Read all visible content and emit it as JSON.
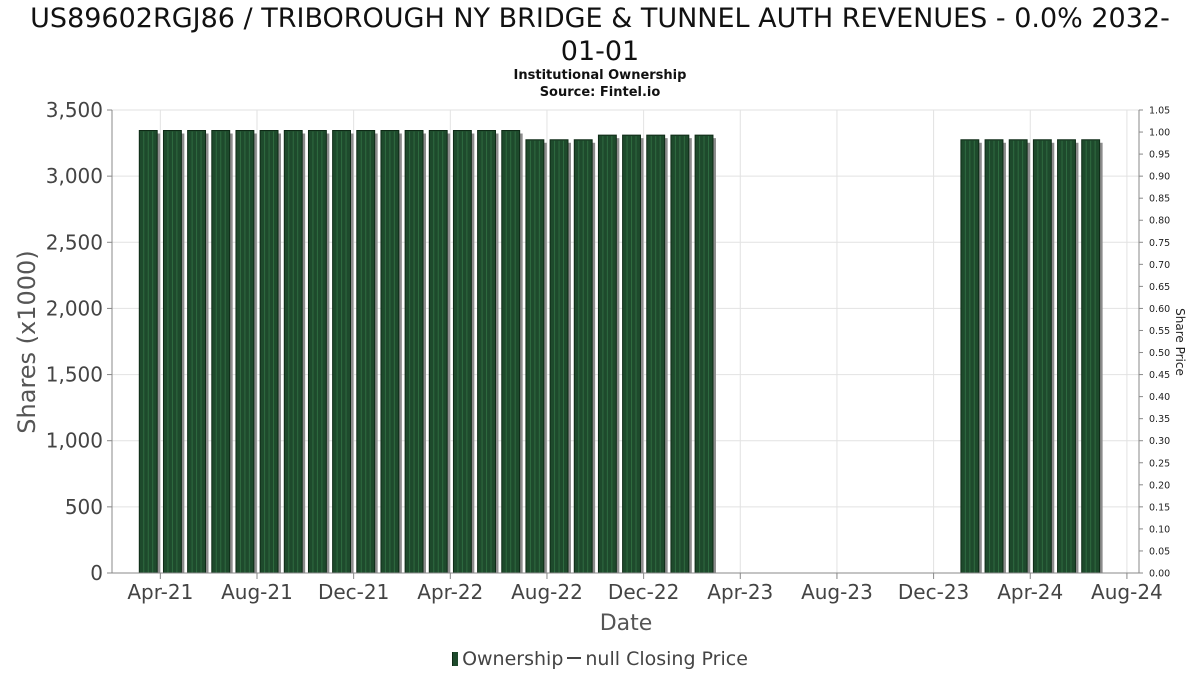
{
  "chart_data": {
    "type": "bar",
    "title_line1": "US89602RGJ86 / TRIBOROUGH NY BRIDGE & TUNNEL AUTH REVENUES - 0.0% 2032-",
    "title_line2": "01-01",
    "subtitle": "Institutional Ownership",
    "source": "Source: Fintel.io",
    "xlabel": "Date",
    "ylabel": "Shares (x1000)",
    "ylabel_right": "Share Price",
    "ylim": [
      0,
      3500
    ],
    "ylim_right": [
      0,
      1.05
    ],
    "yticks": [
      "0",
      "500",
      "1,000",
      "1,500",
      "2,000",
      "2,500",
      "3,000",
      "3,500"
    ],
    "yticks_right": [
      "0.00",
      "0.05",
      "0.10",
      "0.15",
      "0.20",
      "0.25",
      "0.30",
      "0.35",
      "0.40",
      "0.45",
      "0.50",
      "0.55",
      "0.60",
      "0.65",
      "0.70",
      "0.75",
      "0.80",
      "0.85",
      "0.90",
      "0.95",
      "1.00",
      "1.05"
    ],
    "xticks": [
      "Apr-21",
      "Aug-21",
      "Dec-21",
      "Apr-22",
      "Aug-22",
      "Dec-22",
      "Apr-23",
      "Aug-23",
      "Dec-23",
      "Apr-24",
      "Aug-24"
    ],
    "x_start": "2021-02",
    "grid": true,
    "legend_position": "bottom",
    "colors": {
      "bar": "#1e4a2c",
      "bar_edge": "#0e2a16",
      "shadow": "#8c8c8c"
    },
    "series": [
      {
        "name": "Ownership",
        "points": [
          {
            "month": "2021-03",
            "value": 3345
          },
          {
            "month": "2021-04",
            "value": 3345
          },
          {
            "month": "2021-05",
            "value": 3345
          },
          {
            "month": "2021-06",
            "value": 3345
          },
          {
            "month": "2021-07",
            "value": 3345
          },
          {
            "month": "2021-08",
            "value": 3345
          },
          {
            "month": "2021-09",
            "value": 3345
          },
          {
            "month": "2021-10",
            "value": 3345
          },
          {
            "month": "2021-11",
            "value": 3345
          },
          {
            "month": "2021-12",
            "value": 3345
          },
          {
            "month": "2022-01",
            "value": 3345
          },
          {
            "month": "2022-02",
            "value": 3345
          },
          {
            "month": "2022-03",
            "value": 3345
          },
          {
            "month": "2022-04",
            "value": 3345
          },
          {
            "month": "2022-05",
            "value": 3345
          },
          {
            "month": "2022-06",
            "value": 3345
          },
          {
            "month": "2022-07",
            "value": 3275
          },
          {
            "month": "2022-08",
            "value": 3275
          },
          {
            "month": "2022-09",
            "value": 3275
          },
          {
            "month": "2022-10",
            "value": 3310
          },
          {
            "month": "2022-11",
            "value": 3310
          },
          {
            "month": "2022-12",
            "value": 3310
          },
          {
            "month": "2023-01",
            "value": 3310
          },
          {
            "month": "2023-02",
            "value": 3310
          },
          {
            "month": "2024-01",
            "value": 3275
          },
          {
            "month": "2024-02",
            "value": 3275
          },
          {
            "month": "2024-03",
            "value": 3275
          },
          {
            "month": "2024-04",
            "value": 3275
          },
          {
            "month": "2024-05",
            "value": 3275
          },
          {
            "month": "2024-06",
            "value": 3275
          }
        ]
      }
    ],
    "legend": {
      "ownership": "Ownership",
      "price": "null Closing Price"
    }
  }
}
